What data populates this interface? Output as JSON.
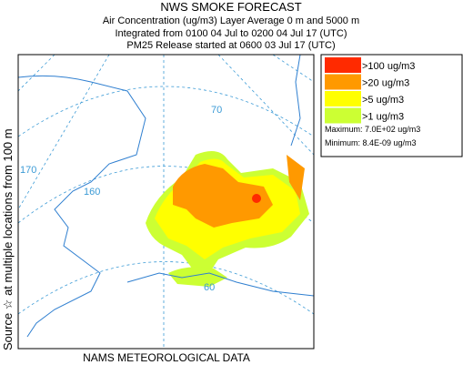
{
  "header": {
    "title": "NWS SMOKE FORECAST",
    "lines": [
      "Air Concentration (ug/m3) Layer Average    0 m and  5000 m",
      "Integrated from 0100 04 Jul to 0200 04 Jul 17 (UTC)",
      "PM25 Release started at 0600 03 Jul 17 (UTC)"
    ]
  },
  "legend": {
    "items": [
      {
        "label": ">100 ug/m3",
        "color": "#ff2a00"
      },
      {
        "label": ">20 ug/m3",
        "color": "#ff9900"
      },
      {
        "label": ">5 ug/m3",
        "color": "#ffff00"
      },
      {
        "label": ">1 ug/m3",
        "color": "#ccff33"
      }
    ]
  },
  "stats": {
    "maximum": "Maximum: 7.0E+02 ug/m3",
    "minimum": "Minimum: 8.4E-09 ug/m3"
  },
  "side_label": "Source ☆ at multiple locations from  100 m",
  "footer": "NAMS METEOROLOGICAL DATA",
  "map": {
    "graticule_labels": [
      "70",
      "170",
      "160",
      "60"
    ]
  }
}
